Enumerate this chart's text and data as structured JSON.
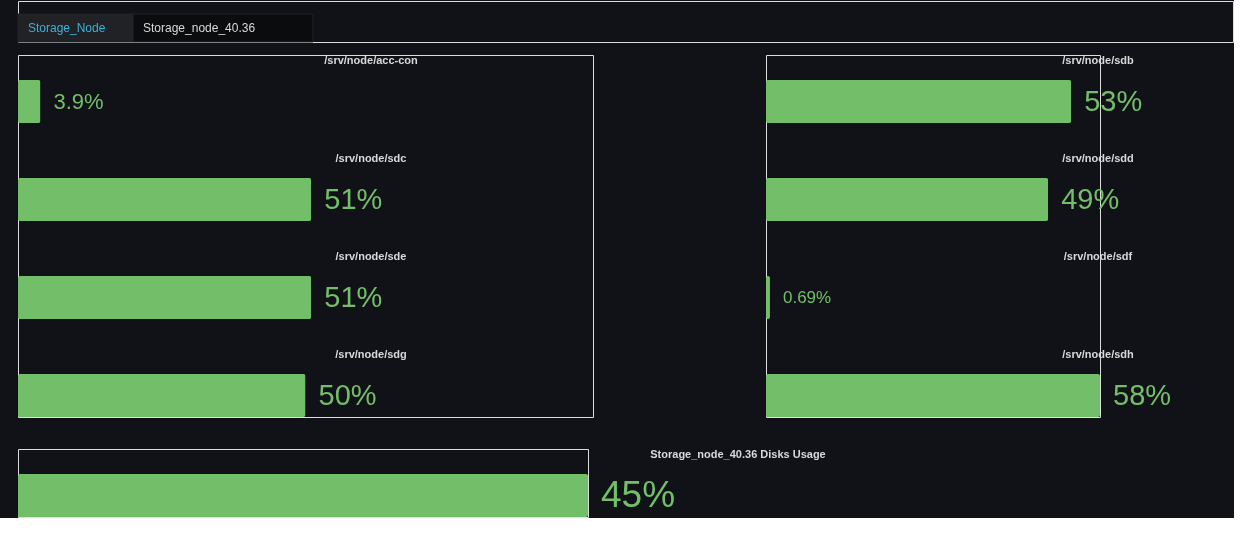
{
  "chart_data": [
    {
      "type": "other",
      "annotations": [
        "Storage_Node",
        "Storage_node_40.36"
      ]
    },
    {
      "type": "bar",
      "orientation": "horizontal",
      "categories": [
        "/srv/node/acc-con",
        "/srv/node/sdc",
        "/srv/node/sde",
        "/srv/node/sdg"
      ],
      "values": [
        3.9,
        51,
        51,
        50
      ],
      "value_labels": [
        "3.9%",
        "51%",
        "51%",
        "50%"
      ],
      "color": "#73bf69",
      "xlim": [
        0,
        100
      ],
      "tick_labels": "y"
    },
    {
      "type": "bar",
      "orientation": "horizontal",
      "categories": [
        "/srv/node/sdb",
        "/srv/node/sdd",
        "/srv/node/sdf",
        "/srv/node/sdh"
      ],
      "values": [
        53,
        49,
        0.69,
        58
      ],
      "value_labels": [
        "53%",
        "49%",
        "0.69%",
        "58%"
      ],
      "color": "#73bf69",
      "tick_labels": "y"
    },
    {
      "type": "bar",
      "orientation": "horizontal",
      "categories": [
        "Storage_node_40.36 Disks Usage"
      ],
      "values": [
        45
      ],
      "value_labels": [
        "45%"
      ],
      "color": "#73bf69",
      "tick_labels": "y"
    }
  ]
}
